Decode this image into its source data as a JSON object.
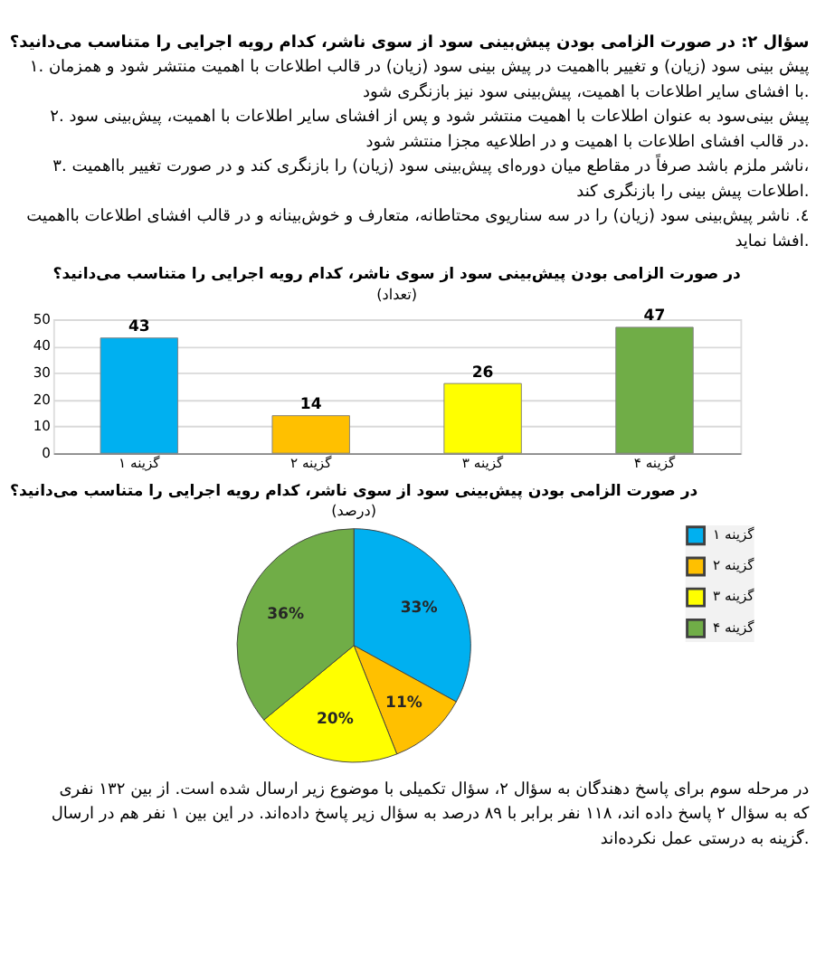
{
  "chart_data": [
    {
      "type": "other",
      "title": "سؤال ۲: در صورت الزامی بودن پیش‌بینی سود از سوی ناشر، کدام رویه اجرایی را متناسب می‌دانید؟",
      "annotations": [
        "۱. پیش بینی سود (زیان) و تغییر بااهمیت در پیش بینی سود (زیان) در قالب اطلاعات با اهمیت منتشر شود و همزمان",
        "با افشای سایر اطلاعات با اهمیت، پیش‌بینی سود نیز بازنگری شود.",
        "۲. پیش بینی‌سود به عنوان اطلاعات با اهمیت منتشر شود و پس از افشای سایر اطلاعات با اهمیت، پیش‌بینی سود",
        "در قالب افشای اطلاعات با اهمیت و در اطلاعیه مجزا منتشر شود.",
        "۳. ناشر ملزم باشد صرفاً در مقاطع میان دوره‌ای پیش‌بینی سود (زیان) را بازنگری کند و در صورت تغییر بااهمیت،",
        "اطلاعات پیش بینی را بازنگری کند.",
        "٤. ناشر پیش‌بینی سود (زیان) را در سه سناریوی محتاطانه، متعارف و خوش‌بینانه و در قالب افشای اطلاعات بااهمیت",
        "افشا نماید."
      ]
    },
    {
      "type": "bar",
      "title": "در صورت الزامی بودن پیش‌بینی سود از سوی ناشر، کدام رویه اجرایی را متناسب می‌دانید؟",
      "subtitle": "(تعداد)",
      "categories": [
        "گزینه ۱",
        "گزینه ۲",
        "گزینه ۳",
        "گزینه ۴"
      ],
      "values": [
        43,
        14,
        26,
        47
      ],
      "colors": [
        "#00b0f0",
        "#ffc000",
        "#ffff00",
        "#70ad47"
      ],
      "ylim": [
        0,
        50
      ],
      "yticks": [
        0,
        10,
        20,
        30,
        40,
        50
      ],
      "grid": "y",
      "data_labels": true
    },
    {
      "type": "pie",
      "title": "در صورت الزامی بودن پیش‌بینی سود از سوی ناشر، کدام رویه اجرایی را متناسب می‌دانید؟",
      "subtitle": "(درصد)",
      "categories": [
        "گزینه ۱",
        "گزینه ۲",
        "گزینه ۳",
        "گزینه ۴"
      ],
      "values": [
        33,
        11,
        20,
        36
      ],
      "colors": [
        "#00b0f0",
        "#ffc000",
        "#ffff00",
        "#70ad47"
      ],
      "value_labels": [
        "33%",
        "11%",
        "20%",
        "36%"
      ],
      "legend": "right"
    },
    {
      "type": "other",
      "annotations": [
        "در مرحله سوم برای پاسخ دهندگان به سؤال ۲، سؤال تکمیلی با موضوع زیر ارسال شده است. از بین ۱۳۲ نفری",
        "که به سؤال ۲ پاسخ داده اند، ۱۱۸ نفر برابر با ۸۹ درصد به سؤال زیر پاسخ داده‌اند. در این بین ۱ نفر هم در ارسال",
        "گزینه به درستی عمل نکرده‌اند."
      ]
    }
  ]
}
